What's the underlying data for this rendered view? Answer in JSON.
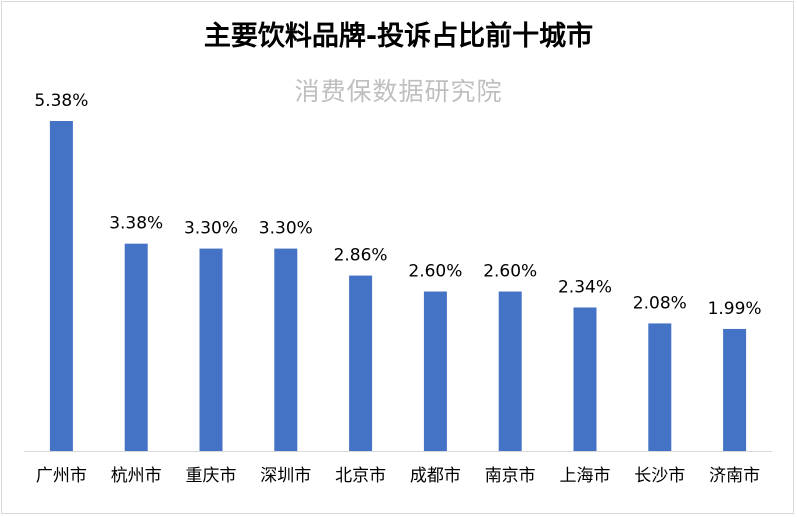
{
  "chart_data": {
    "type": "bar",
    "title": "主要饮料品牌-投诉占比前十城市",
    "subtitle": "消费保数据研究院",
    "categories": [
      "广州市",
      "杭州市",
      "重庆市",
      "深圳市",
      "北京市",
      "成都市",
      "南京市",
      "上海市",
      "长沙市",
      "济南市"
    ],
    "values": [
      5.38,
      3.38,
      3.3,
      3.3,
      2.86,
      2.6,
      2.6,
      2.34,
      2.08,
      1.99
    ],
    "data_labels": [
      "5.38%",
      "3.38%",
      "3.30%",
      "3.30%",
      "2.86%",
      "2.60%",
      "2.60%",
      "2.34%",
      "2.08%",
      "1.99%"
    ],
    "ylim": [
      0,
      5.38
    ],
    "grid": false,
    "legend": "none",
    "bar_color": "#4472C4"
  }
}
